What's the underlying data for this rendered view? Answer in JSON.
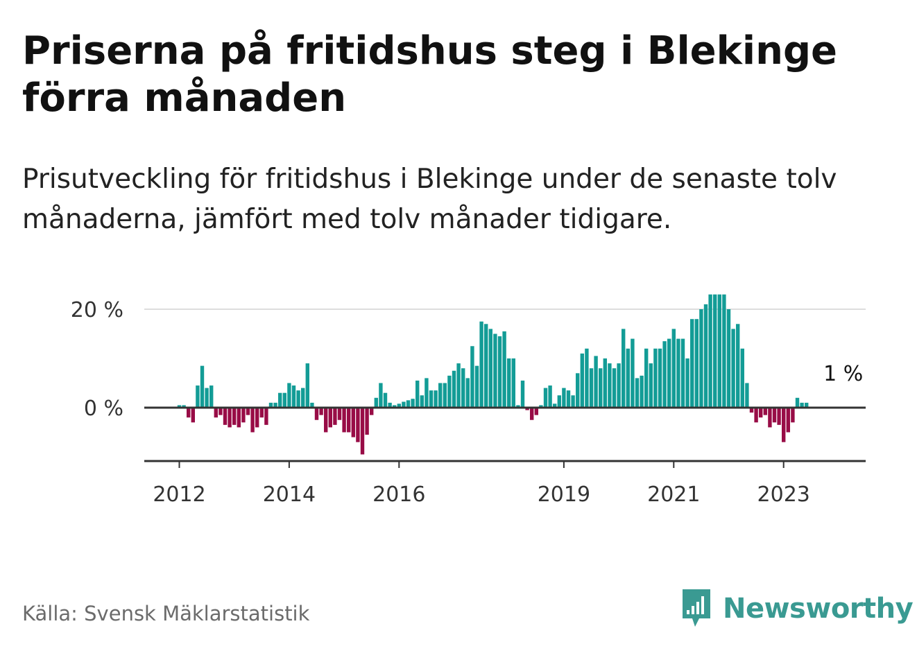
{
  "title": "Priserna på fritidshus steg i Blekinge förra månaden",
  "subtitle": "Prisutveckling för fritidshus i Blekinge under de senaste tolv månaderna, jämfört med tolv månader tidigare.",
  "source": "Källa: Svensk Mäklarstatistik",
  "brand": "Newsworthy",
  "colors": {
    "positive": "#139c96",
    "negative": "#980c46",
    "grid": "#dddddd",
    "axis": "#333333",
    "brand": "#3a9a92"
  },
  "chart_data": {
    "type": "bar",
    "start": "2012-01",
    "ylim": [
      -10,
      23
    ],
    "yticks": [
      {
        "value": 0,
        "label": "0 %"
      },
      {
        "value": 20,
        "label": "20 %"
      }
    ],
    "xticks": [
      {
        "date": "2012-01",
        "label": "2012"
      },
      {
        "date": "2014-01",
        "label": "2014"
      },
      {
        "date": "2016-01",
        "label": "2016"
      },
      {
        "date": "2019-01",
        "label": "2019"
      },
      {
        "date": "2021-01",
        "label": "2021"
      },
      {
        "date": "2023-01",
        "label": "2023"
      }
    ],
    "annotation": {
      "label": "1 %",
      "date": "2023-11",
      "value": 1
    },
    "values": [
      0.5,
      0.5,
      -2,
      -3,
      4.5,
      8.5,
      4,
      4.5,
      -2,
      -1.5,
      -3.5,
      -4,
      -3.5,
      -4,
      -3,
      -1.5,
      -5,
      -4,
      -2,
      -3.5,
      1,
      1,
      3,
      3,
      5,
      4.5,
      3.5,
      4,
      9,
      1,
      -2.5,
      -1.5,
      -5,
      -4,
      -3.5,
      -2.5,
      -5,
      -5,
      -6,
      -7,
      -9.5,
      -5.5,
      -1.5,
      2,
      5,
      3,
      1,
      0.5,
      0.8,
      1.2,
      1.5,
      1.8,
      5.5,
      2.5,
      6,
      3.5,
      3.5,
      5,
      5,
      6.5,
      7.5,
      9,
      8,
      6,
      12.5,
      8.5,
      17.5,
      17,
      16,
      15,
      14.5,
      15.5,
      10,
      10,
      0.5,
      5.5,
      -0.5,
      -2.5,
      -1.5,
      0.5,
      4,
      4.5,
      0.8,
      2.5,
      4,
      3.5,
      2.5,
      7,
      11,
      12,
      8,
      10.5,
      8,
      10,
      9,
      8,
      9,
      16,
      12,
      14,
      6,
      6.5,
      12,
      9,
      12,
      12,
      13.5,
      14,
      16,
      14,
      14,
      10,
      18,
      18,
      20,
      21,
      23,
      23,
      23,
      23,
      20,
      16,
      17,
      12,
      5,
      -1,
      -3,
      -2,
      -1.5,
      -4,
      -3,
      -3.5,
      -7,
      -5,
      -3,
      2,
      1,
      1
    ]
  }
}
